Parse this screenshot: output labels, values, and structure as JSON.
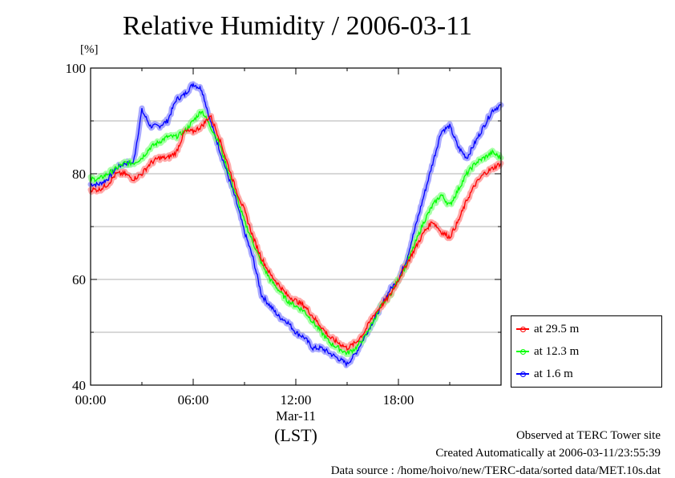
{
  "chart_data": {
    "type": "line",
    "title": "Relative Humidity / 2006-03-11",
    "ylabel": "[%]",
    "ylim": [
      40,
      100
    ],
    "yticks": [
      "40",
      "60",
      "80",
      "100"
    ],
    "xlim": [
      0,
      24
    ],
    "xtick_labels": [
      "00:00",
      "06:00",
      "12:00",
      "18:00"
    ],
    "xlabel_date": "Mar-11",
    "xlabel": "(LST)",
    "grid": true,
    "legend_position": "bottom-right-outside",
    "series": [
      {
        "name": "at 29.5 m",
        "color": "#ff0000",
        "band_color": "#ff9a9a",
        "x": [
          0,
          0.5,
          1,
          1.5,
          2,
          2.5,
          3,
          3.5,
          4,
          4.5,
          5,
          5.5,
          6,
          6.5,
          7,
          7.5,
          8,
          8.5,
          9,
          9.5,
          10,
          10.5,
          11,
          11.5,
          12,
          12.5,
          13,
          13.5,
          14,
          14.5,
          15,
          15.5,
          16,
          16.5,
          17,
          17.5,
          18,
          18.5,
          19,
          19.5,
          20,
          20.5,
          21,
          21.5,
          22,
          22.5,
          23,
          23.5,
          24
        ],
        "values": [
          77,
          77,
          78,
          80,
          80,
          79,
          80,
          82,
          83,
          83,
          84,
          88,
          88,
          89,
          91,
          87,
          82,
          77,
          73,
          68,
          64,
          61,
          59,
          57,
          56,
          55,
          53,
          51,
          49,
          48,
          47,
          48,
          50,
          53,
          55,
          57,
          60,
          63,
          66,
          69,
          71,
          69,
          68,
          71,
          75,
          78,
          80,
          81,
          82
        ]
      },
      {
        "name": "at 12.3 m",
        "color": "#00ff00",
        "band_color": "#99ff99",
        "x": [
          0,
          0.5,
          1,
          1.5,
          2,
          2.5,
          3,
          3.5,
          4,
          4.5,
          5,
          5.5,
          6,
          6.5,
          7,
          7.5,
          8,
          8.5,
          9,
          9.5,
          10,
          10.5,
          11,
          11.5,
          12,
          12.5,
          13,
          13.5,
          14,
          14.5,
          15,
          15.5,
          16,
          16.5,
          17,
          17.5,
          18,
          18.5,
          19,
          19.5,
          20,
          20.5,
          21,
          21.5,
          22,
          22.5,
          23,
          23.5,
          24
        ],
        "values": [
          79,
          79,
          80,
          81,
          82,
          82,
          83,
          85,
          86,
          87,
          87,
          88,
          90,
          92,
          89,
          86,
          81,
          76,
          71,
          67,
          63,
          60,
          58,
          56,
          55,
          54,
          52,
          50,
          48,
          47,
          46,
          47,
          49,
          52,
          55,
          57,
          60,
          63,
          67,
          71,
          74,
          76,
          74,
          77,
          80,
          82,
          83,
          84,
          83
        ]
      },
      {
        "name": "at 1.6 m",
        "color": "#0000ff",
        "band_color": "#9a9aff",
        "x": [
          0,
          0.5,
          1,
          1.5,
          2,
          2.5,
          3,
          3.5,
          4,
          4.5,
          5,
          5.5,
          6,
          6.5,
          7,
          7.5,
          8,
          8.5,
          9,
          9.5,
          10,
          10.5,
          11,
          11.5,
          12,
          12.5,
          13,
          13.5,
          14,
          14.5,
          15,
          15.5,
          16,
          16.5,
          17,
          17.5,
          18,
          18.5,
          19,
          19.5,
          20,
          20.5,
          21,
          21.5,
          22,
          22.5,
          23,
          23.5,
          24
        ],
        "values": [
          78,
          78,
          79,
          81,
          82,
          82,
          92,
          89,
          89,
          90,
          94,
          95,
          97,
          96,
          90,
          85,
          80,
          75,
          69,
          64,
          57,
          55,
          53,
          52,
          50,
          49,
          47,
          47,
          46,
          45,
          44,
          46,
          49,
          52,
          55,
          58,
          60,
          64,
          70,
          76,
          82,
          88,
          89,
          85,
          83,
          86,
          89,
          92,
          93
        ]
      }
    ]
  },
  "footer": {
    "line1": "Observed at TERC Tower site",
    "line2": "Created Automatically at 2006-03-11/23:55:39",
    "line3": "Data source : /home/hoivo/new/TERC-data/sorted  data/MET.10s.dat"
  }
}
